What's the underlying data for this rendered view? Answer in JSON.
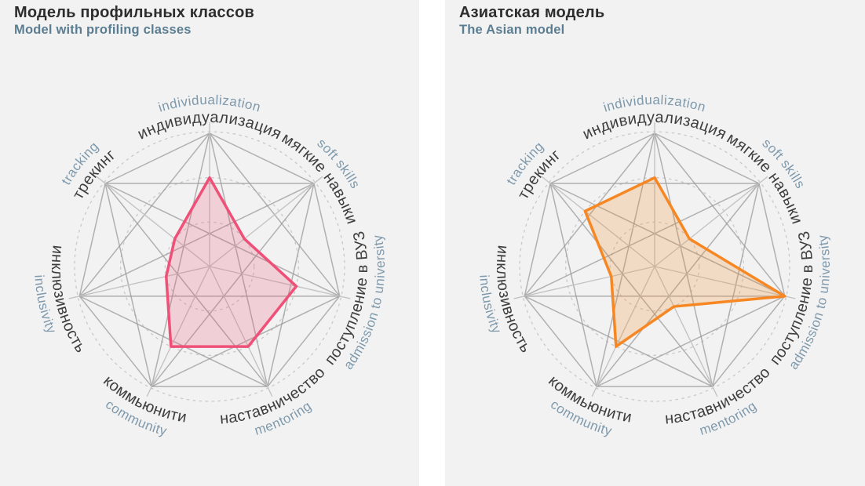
{
  "page": {
    "background": "#ffffff",
    "panel_background": "#f2f2f2",
    "title_color": "#2d2d2d",
    "subtitle_color": "#5b7d92",
    "label_ru_color": "#3e3e3e",
    "label_en_color": "#7e99ac",
    "web_color": "#9a9a9a",
    "spoke_color": "#c4c4c4",
    "ring_color": "#c9c9c9"
  },
  "chart_data": [
    {
      "type": "radar",
      "title": "Модель профильных классов",
      "subtitle": "Model with profiling classes",
      "series_color": "#ef5078",
      "axes": [
        {
          "ru": "индивидуализация",
          "en": "individualization"
        },
        {
          "ru": "мягкие навыки",
          "en": "soft skills"
        },
        {
          "ru": "поступление в ВУЗ",
          "en": "admission to university"
        },
        {
          "ru": "наставничество",
          "en": "mentoring"
        },
        {
          "ru": "коммьюнити",
          "en": "community"
        },
        {
          "ru": "инклюзивность",
          "en": "inclusivity"
        },
        {
          "ru": "трекинг",
          "en": "tracking"
        }
      ],
      "values": [
        2,
        1,
        2,
        2,
        2,
        1,
        1
      ],
      "scale": {
        "min": 0,
        "max": 3,
        "rings": [
          1,
          2,
          3
        ]
      },
      "grid": {
        "web": "complete-graph",
        "rings_dashed": true,
        "legend": "none"
      }
    },
    {
      "type": "radar",
      "title": "Азиатская модель",
      "subtitle": "The Asian model",
      "series_color": "#f68723",
      "axes": [
        {
          "ru": "индивидуализация",
          "en": "individualization"
        },
        {
          "ru": "мягкие навыки",
          "en": "soft skills"
        },
        {
          "ru": "поступление в ВУЗ",
          "en": "admission to university"
        },
        {
          "ru": "наставничество",
          "en": "mentoring"
        },
        {
          "ru": "коммьюнити",
          "en": "community"
        },
        {
          "ru": "инклюзивность",
          "en": "inclusivity"
        },
        {
          "ru": "трекинг",
          "en": "tracking"
        }
      ],
      "values": [
        2,
        1,
        3,
        1,
        2,
        1,
        2
      ],
      "scale": {
        "min": 0,
        "max": 3,
        "rings": [
          1,
          2,
          3
        ]
      },
      "grid": {
        "web": "complete-graph",
        "rings_dashed": true,
        "legend": "none"
      }
    }
  ]
}
